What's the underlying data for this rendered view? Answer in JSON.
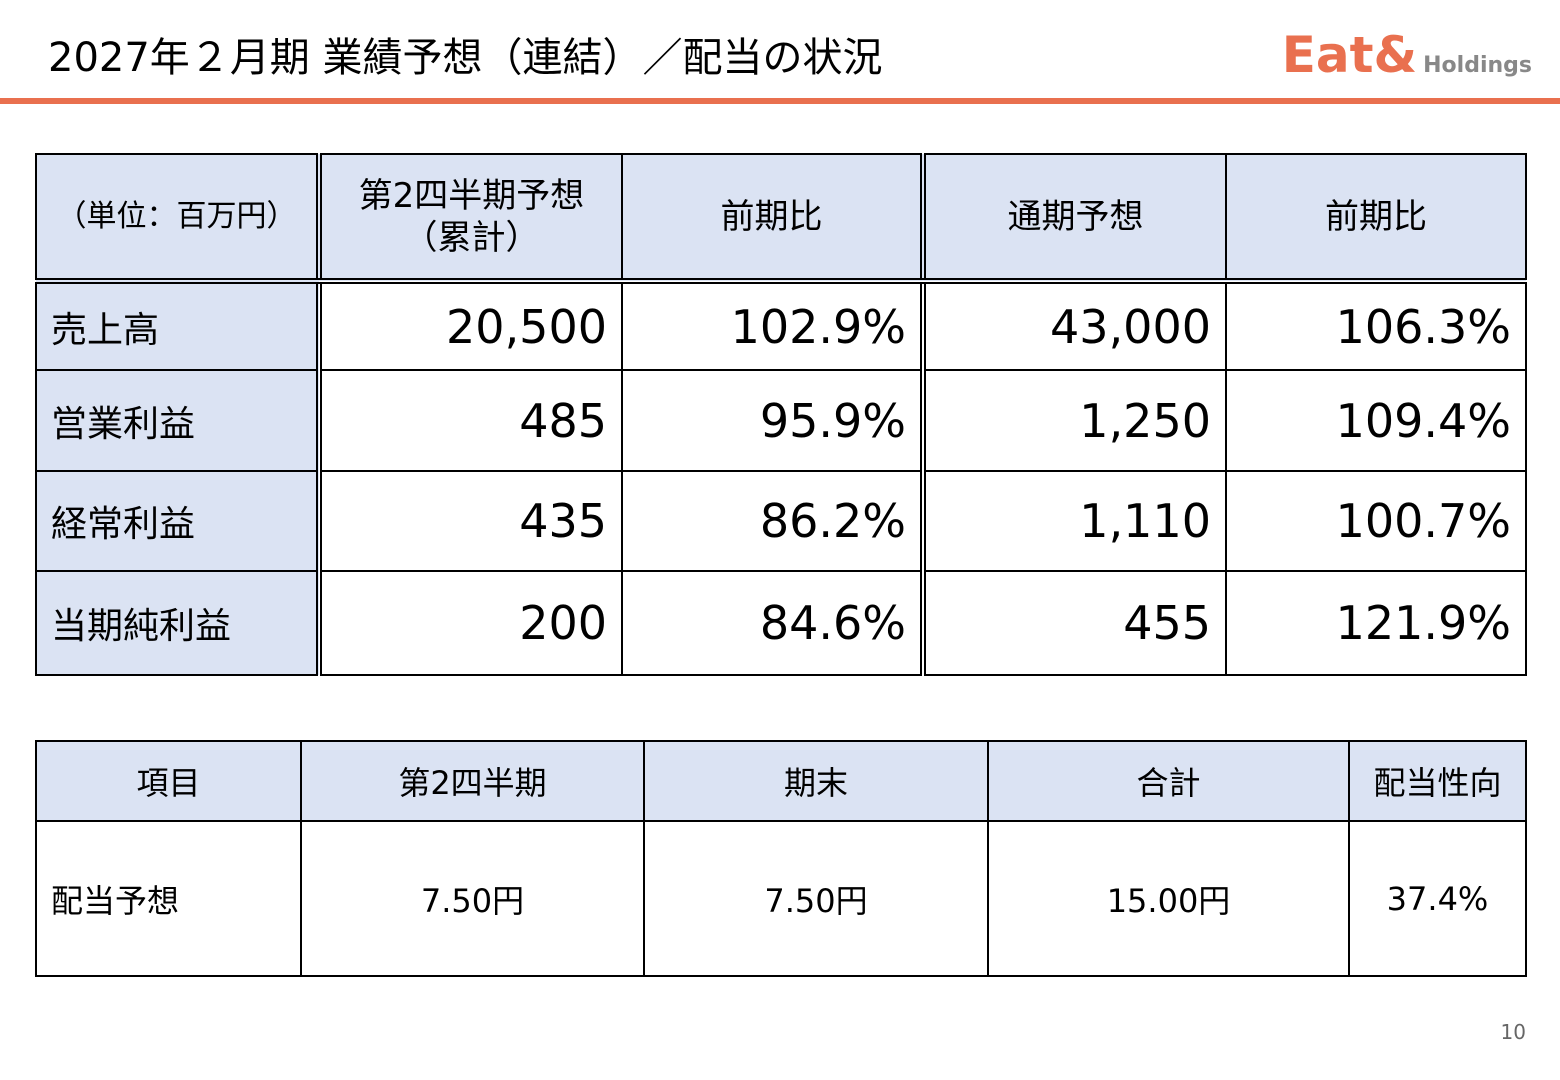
{
  "header": {
    "title": "2027年２月期 業績予想（連結）／配当の状況",
    "logo_main": "Eat&",
    "logo_sub": "Holdings"
  },
  "forecast_table": {
    "header": [
      "（単位：百万円）",
      "第2四半期予想\n（累計）",
      "前期比",
      "通期予想",
      "前期比"
    ],
    "rows": [
      [
        "売上高",
        "20,500",
        "102.9%",
        "43,000",
        "106.3%"
      ],
      [
        "営業利益",
        "485",
        "95.9%",
        "1,250",
        "109.4%"
      ],
      [
        "経常利益",
        "435",
        "86.2%",
        "1,110",
        "100.7%"
      ],
      [
        "当期純利益",
        "200",
        "84.6%",
        "455",
        "121.9%"
      ]
    ]
  },
  "dividend_table": {
    "header": [
      "項目",
      "第2四半期",
      "期末",
      "合計",
      "配当性向"
    ],
    "rows": [
      [
        "配当予想",
        "7.50円",
        "7.50円",
        "15.00円",
        "37.4%"
      ]
    ]
  },
  "page_number": "10"
}
